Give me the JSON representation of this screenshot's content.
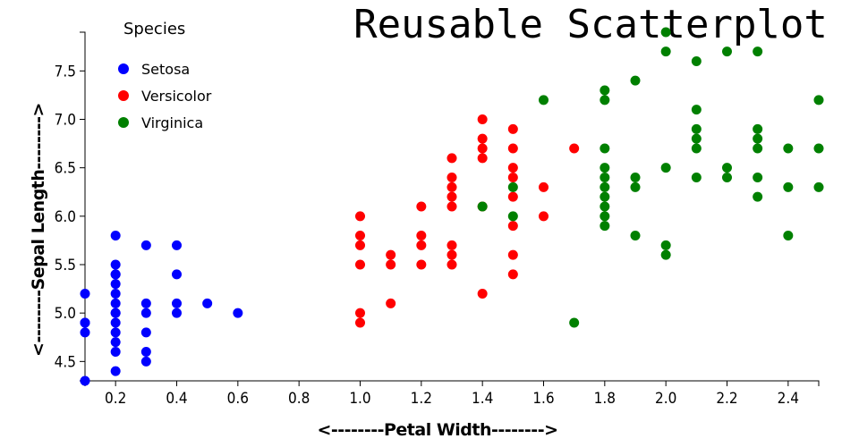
{
  "chart_data": {
    "type": "scatter",
    "title": "Reusable Scatterplot",
    "xlabel": "<--------Petal Width-------->",
    "ylabel": "<--------Sepal Length-------->",
    "xlim": [
      0.1,
      2.5
    ],
    "ylim": [
      4.3,
      7.9
    ],
    "x_ticks": [
      0.2,
      0.4,
      0.6,
      0.8,
      1.0,
      1.2,
      1.4,
      1.6,
      1.8,
      2.0,
      2.2,
      2.4
    ],
    "x_tick_labels": [
      "0.2",
      "0.4",
      "0.6",
      "0.8",
      "1.0",
      "1.2",
      "1.4",
      "1.6",
      "1.8",
      "2.0",
      "2.2",
      "2.4"
    ],
    "y_ticks": [
      4.5,
      5.0,
      5.5,
      6.0,
      6.5,
      7.0,
      7.5
    ],
    "y_tick_labels": [
      "4.5",
      "5.0",
      "5.5",
      "6.0",
      "6.5",
      "7.0",
      "7.5"
    ],
    "grid": false,
    "legend": {
      "title": "Species",
      "placement": "top-left"
    },
    "series": [
      {
        "name": "Setosa",
        "color": "#0000ff",
        "points": [
          [
            0.1,
            5.2
          ],
          [
            0.1,
            4.9
          ],
          [
            0.1,
            4.9
          ],
          [
            0.1,
            4.8
          ],
          [
            0.1,
            4.3
          ],
          [
            0.2,
            5.8
          ],
          [
            0.2,
            5.5
          ],
          [
            0.2,
            5.4
          ],
          [
            0.2,
            5.3
          ],
          [
            0.2,
            5.2
          ],
          [
            0.2,
            5.1
          ],
          [
            0.2,
            5.0
          ],
          [
            0.2,
            4.9
          ],
          [
            0.2,
            4.8
          ],
          [
            0.2,
            4.7
          ],
          [
            0.2,
            4.6
          ],
          [
            0.2,
            4.4
          ],
          [
            0.2,
            5.4
          ],
          [
            0.2,
            5.0
          ],
          [
            0.3,
            5.7
          ],
          [
            0.3,
            5.1
          ],
          [
            0.3,
            5.0
          ],
          [
            0.3,
            4.8
          ],
          [
            0.3,
            4.6
          ],
          [
            0.3,
            4.5
          ],
          [
            0.4,
            5.7
          ],
          [
            0.4,
            5.4
          ],
          [
            0.4,
            5.1
          ],
          [
            0.4,
            5.0
          ],
          [
            0.5,
            5.1
          ],
          [
            0.6,
            5.0
          ]
        ]
      },
      {
        "name": "Versicolor",
        "color": "#ff0000",
        "points": [
          [
            1.0,
            6.0
          ],
          [
            1.0,
            5.8
          ],
          [
            1.0,
            5.7
          ],
          [
            1.0,
            5.5
          ],
          [
            1.0,
            5.0
          ],
          [
            1.0,
            4.9
          ],
          [
            1.1,
            5.6
          ],
          [
            1.1,
            5.5
          ],
          [
            1.1,
            5.1
          ],
          [
            1.2,
            6.1
          ],
          [
            1.2,
            5.8
          ],
          [
            1.2,
            5.7
          ],
          [
            1.2,
            5.5
          ],
          [
            1.3,
            6.6
          ],
          [
            1.3,
            6.4
          ],
          [
            1.3,
            6.3
          ],
          [
            1.3,
            6.2
          ],
          [
            1.3,
            6.1
          ],
          [
            1.3,
            5.7
          ],
          [
            1.3,
            5.6
          ],
          [
            1.3,
            5.5
          ],
          [
            1.4,
            7.0
          ],
          [
            1.4,
            6.8
          ],
          [
            1.4,
            6.7
          ],
          [
            1.4,
            6.6
          ],
          [
            1.4,
            6.1
          ],
          [
            1.4,
            5.2
          ],
          [
            1.5,
            6.9
          ],
          [
            1.5,
            6.7
          ],
          [
            1.5,
            6.5
          ],
          [
            1.5,
            6.4
          ],
          [
            1.5,
            6.2
          ],
          [
            1.5,
            5.9
          ],
          [
            1.5,
            5.6
          ],
          [
            1.5,
            5.4
          ],
          [
            1.6,
            6.3
          ],
          [
            1.6,
            6.0
          ],
          [
            1.7,
            6.7
          ]
        ]
      },
      {
        "name": "Virginica",
        "color": "#008000",
        "points": [
          [
            1.4,
            6.1
          ],
          [
            1.5,
            6.3
          ],
          [
            1.5,
            6.0
          ],
          [
            1.6,
            7.2
          ],
          [
            1.7,
            4.9
          ],
          [
            1.8,
            7.3
          ],
          [
            1.8,
            7.2
          ],
          [
            1.8,
            6.7
          ],
          [
            1.8,
            6.5
          ],
          [
            1.8,
            6.4
          ],
          [
            1.8,
            6.3
          ],
          [
            1.8,
            6.2
          ],
          [
            1.8,
            6.1
          ],
          [
            1.8,
            6.0
          ],
          [
            1.8,
            5.9
          ],
          [
            1.9,
            7.4
          ],
          [
            1.9,
            6.4
          ],
          [
            1.9,
            6.3
          ],
          [
            1.9,
            5.8
          ],
          [
            2.0,
            7.9
          ],
          [
            2.0,
            7.7
          ],
          [
            2.0,
            6.5
          ],
          [
            2.0,
            5.7
          ],
          [
            2.0,
            5.6
          ],
          [
            2.1,
            7.6
          ],
          [
            2.1,
            7.1
          ],
          [
            2.1,
            6.9
          ],
          [
            2.1,
            6.8
          ],
          [
            2.1,
            6.7
          ],
          [
            2.1,
            6.4
          ],
          [
            2.2,
            7.7
          ],
          [
            2.2,
            6.5
          ],
          [
            2.2,
            6.4
          ],
          [
            2.3,
            7.7
          ],
          [
            2.3,
            6.9
          ],
          [
            2.3,
            6.8
          ],
          [
            2.3,
            6.7
          ],
          [
            2.3,
            6.4
          ],
          [
            2.3,
            6.2
          ],
          [
            2.4,
            6.7
          ],
          [
            2.4,
            6.3
          ],
          [
            2.4,
            5.8
          ],
          [
            2.5,
            7.2
          ],
          [
            2.5,
            6.7
          ],
          [
            2.5,
            6.3
          ]
        ]
      }
    ]
  }
}
